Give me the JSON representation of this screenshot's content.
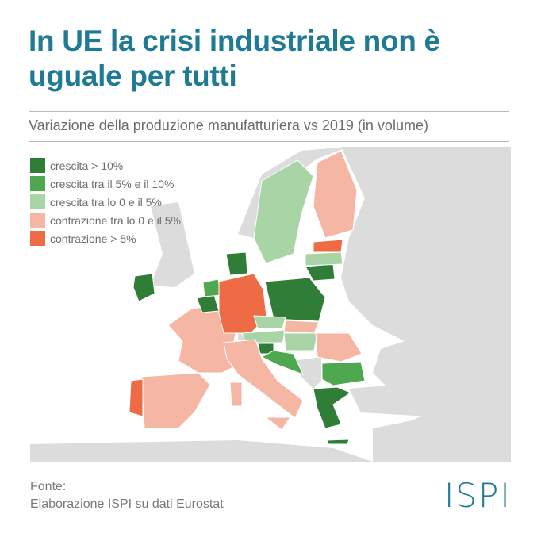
{
  "header": {
    "title": "In UE la crisi industriale non è uguale per tutti",
    "subtitle": "Variazione della produzione manufatturiera vs 2019 (in volume)"
  },
  "legend": [
    {
      "label": "crescita > 10%",
      "color": "#2f7d36"
    },
    {
      "label": "crescita tra il 5% e il 10%",
      "color": "#4ea84f"
    },
    {
      "label": "crescita tra lo 0 e il 5%",
      "color": "#a9d4a6"
    },
    {
      "label": "contrazione tra lo 0 e il 5%",
      "color": "#f5b6a4"
    },
    {
      "label": "contrazione > 5%",
      "color": "#ee6b46"
    }
  ],
  "map_colors": {
    "land": "#dcdcdc",
    "sea": "#ffffff"
  },
  "regions": {
    "IE": 0,
    "DK": 0,
    "BE": 0,
    "PL": 0,
    "LT": 0,
    "SI": 0,
    "GR": 0,
    "NL": 1,
    "HR": 1,
    "BG": 1,
    "SE": 2,
    "LV": 2,
    "CZ": 2,
    "AT": 2,
    "HU": 2,
    "FI": 3,
    "FR": 3,
    "ES": 3,
    "IT": 3,
    "SK": 3,
    "RO": 3,
    "DE": 4,
    "PT": 4,
    "EE": 4
  },
  "footer": {
    "source_label": "Fonte:",
    "source": "Elaborazione ISPI su dati Eurostat",
    "logo": "ISPI"
  }
}
